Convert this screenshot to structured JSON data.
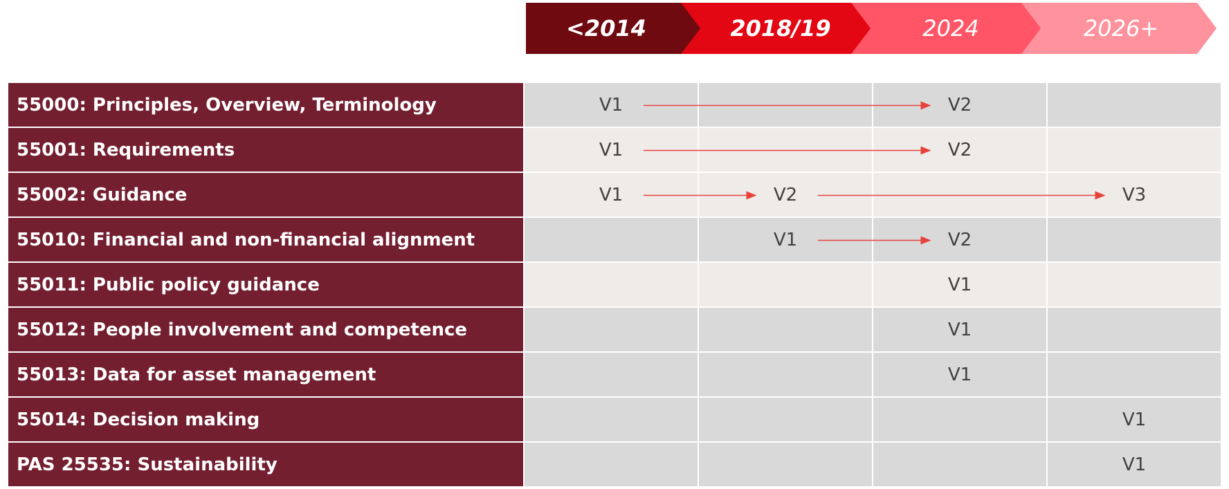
{
  "timeline": {
    "periods": [
      "<2014",
      "2018/19",
      "2024",
      "2026+"
    ],
    "colors": [
      "#6e0a10",
      "#e30613",
      "#ff5566",
      "#ff929c"
    ],
    "text_colors": [
      "#ffffff",
      "#ffffff",
      "#ffffff",
      "#ffffff"
    ]
  },
  "rows": [
    {
      "label": "55000: Principles, Overview, Terminology",
      "shade": "dark",
      "cells": [
        "V1",
        "",
        "V2",
        ""
      ],
      "arrows": [
        [
          0,
          2
        ]
      ]
    },
    {
      "label": "55001: Requirements",
      "shade": "light",
      "cells": [
        "V1",
        "",
        "V2",
        ""
      ],
      "arrows": [
        [
          0,
          2
        ]
      ]
    },
    {
      "label": "55002: Guidance",
      "shade": "light",
      "cells": [
        "V1",
        "V2",
        "",
        "V3"
      ],
      "arrows": [
        [
          0,
          1
        ],
        [
          1,
          3
        ]
      ]
    },
    {
      "label": "55010: Financial and non-financial alignment",
      "shade": "dark",
      "cells": [
        "",
        "V1",
        "V2",
        ""
      ],
      "arrows": [
        [
          1,
          2
        ]
      ]
    },
    {
      "label": "55011: Public policy guidance",
      "shade": "light",
      "cells": [
        "",
        "",
        "V1",
        ""
      ],
      "arrows": []
    },
    {
      "label": "55012: People involvement and competence",
      "shade": "dark",
      "cells": [
        "",
        "",
        "V1",
        ""
      ],
      "arrows": []
    },
    {
      "label": "55013: Data for asset management",
      "shade": "dark",
      "cells": [
        "",
        "",
        "V1",
        ""
      ],
      "arrows": []
    },
    {
      "label": "55014: Decision making",
      "shade": "dark",
      "cells": [
        "",
        "",
        "",
        "V1"
      ],
      "arrows": []
    },
    {
      "label": "PAS 25535: Sustainability",
      "shade": "dark",
      "cells": [
        "",
        "",
        "",
        "V1"
      ],
      "arrows": []
    }
  ],
  "arrow_color": "#e8413c"
}
